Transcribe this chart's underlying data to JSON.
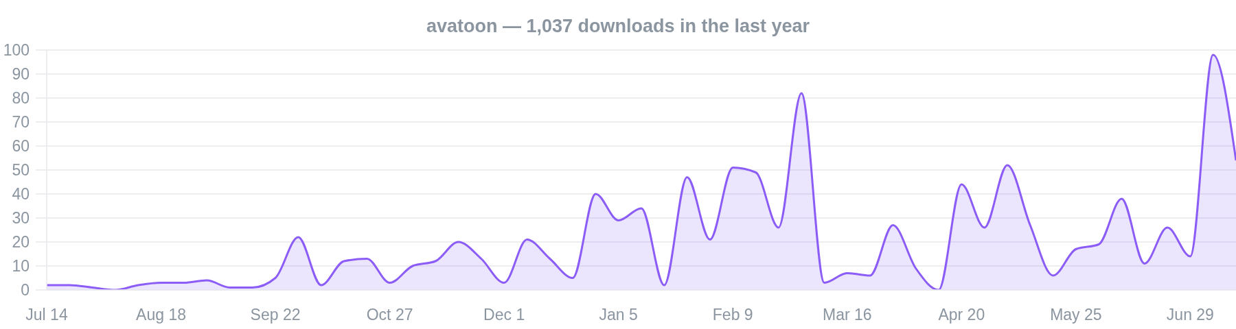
{
  "chart_data": {
    "type": "area",
    "title": "avatoon — 1,037 downloads in the last year",
    "categories": [
      "Jul 14",
      null,
      null,
      null,
      null,
      "Aug 18",
      null,
      null,
      null,
      null,
      "Sep 22",
      null,
      null,
      null,
      null,
      "Oct 27",
      null,
      null,
      null,
      null,
      "Dec 1",
      null,
      null,
      null,
      null,
      "Jan 5",
      null,
      null,
      null,
      null,
      "Feb 9",
      null,
      null,
      null,
      null,
      "Mar 16",
      null,
      null,
      null,
      null,
      "Apr 20",
      null,
      null,
      null,
      null,
      "May 25",
      null,
      null,
      null,
      null,
      "Jun 29",
      null,
      null
    ],
    "values": [
      2,
      2,
      1,
      0,
      2,
      3,
      3,
      4,
      1,
      1,
      5,
      22,
      2,
      12,
      13,
      3,
      10,
      12,
      20,
      13,
      3,
      21,
      13,
      5,
      40,
      29,
      34,
      2,
      47,
      21,
      51,
      49,
      26,
      82,
      3,
      7,
      6,
      27,
      9,
      0,
      44,
      26,
      52,
      27,
      6,
      17,
      19,
      38,
      11,
      26,
      14,
      98,
      54
    ],
    "color": "#8b5cf6",
    "ylim": [
      0,
      100
    ],
    "yticks": [
      0,
      10,
      20,
      30,
      40,
      50,
      60,
      70,
      80,
      90,
      100
    ],
    "grid": "y"
  }
}
